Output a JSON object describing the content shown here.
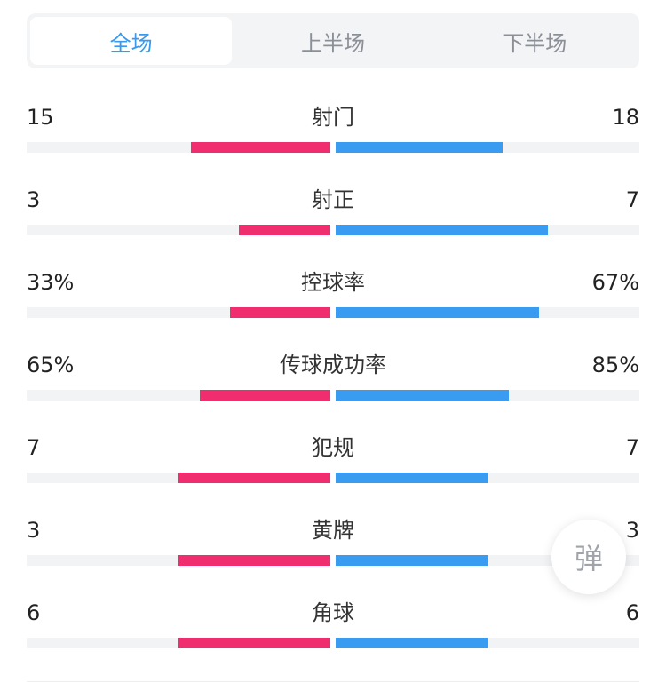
{
  "tabs": [
    {
      "label": "全场",
      "active": true
    },
    {
      "label": "上半场",
      "active": false
    },
    {
      "label": "下半场",
      "active": false
    }
  ],
  "colors": {
    "home": "#f02d6e",
    "away": "#3a9cf0",
    "accent": "#3a99ee"
  },
  "stats": [
    {
      "label": "射门",
      "home_text": "15",
      "away_text": "18",
      "home_share": 0.46,
      "away_share": 0.55
    },
    {
      "label": "射正",
      "home_text": "3",
      "away_text": "7",
      "home_share": 0.3,
      "away_share": 0.7
    },
    {
      "label": "控球率",
      "home_text": "33%",
      "away_text": "67%",
      "home_share": 0.33,
      "away_share": 0.67
    },
    {
      "label": "传球成功率",
      "home_text": "65%",
      "away_text": "85%",
      "home_share": 0.43,
      "away_share": 0.57
    },
    {
      "label": "犯规",
      "home_text": "7",
      "away_text": "7",
      "home_share": 0.5,
      "away_share": 0.5
    },
    {
      "label": "黄牌",
      "home_text": "3",
      "away_text": "3",
      "home_share": 0.5,
      "away_share": 0.5
    },
    {
      "label": "角球",
      "home_text": "6",
      "away_text": "6",
      "home_share": 0.5,
      "away_share": 0.5
    }
  ],
  "danmaku_button": {
    "label": "弹"
  }
}
